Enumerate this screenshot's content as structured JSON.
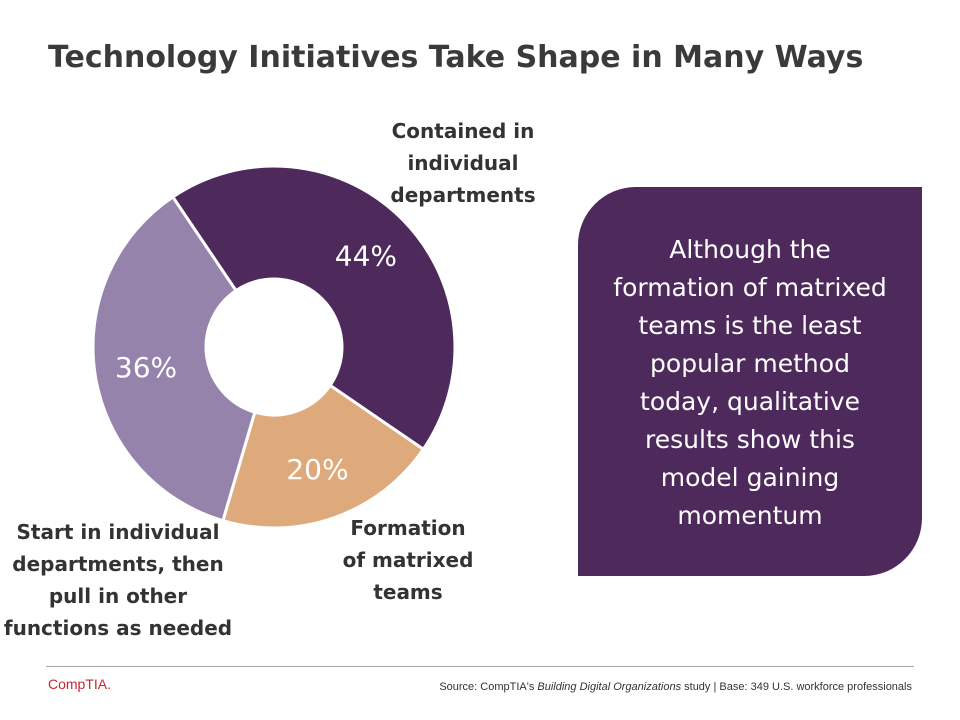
{
  "title": "Technology Initiatives Take Shape in Many Ways",
  "chart_data": {
    "type": "pie",
    "donut": true,
    "slices": [
      {
        "label": "Contained in individual departments",
        "value": 44,
        "display": "44%",
        "color": "#4e2a5c"
      },
      {
        "label": "Formation of matrixed teams",
        "value": 20,
        "display": "20%",
        "color": "#deaa7c"
      },
      {
        "label": "Start in individual departments, then pull in other functions as needed",
        "value": 36,
        "display": "36%",
        "color": "#9683ac"
      }
    ]
  },
  "labels": {
    "slice0": "Contained in\nindividual\ndepartments",
    "slice1": "Formation\nof matrixed\nteams",
    "slice2": "Start in individual\ndepartments, then\npull in other\nfunctions as needed"
  },
  "callout": "Although the\nformation of matrixed\nteams is the least\npopular method\ntoday, qualitative\nresults show this\nmodel gaining\nmomentum",
  "footer": {
    "logo": "CompTIA.",
    "source_prefix": "Source: CompTIA's ",
    "source_study": "Building Digital Organizations",
    "source_suffix": " study | Base: 349 U.S. workforce professionals"
  }
}
